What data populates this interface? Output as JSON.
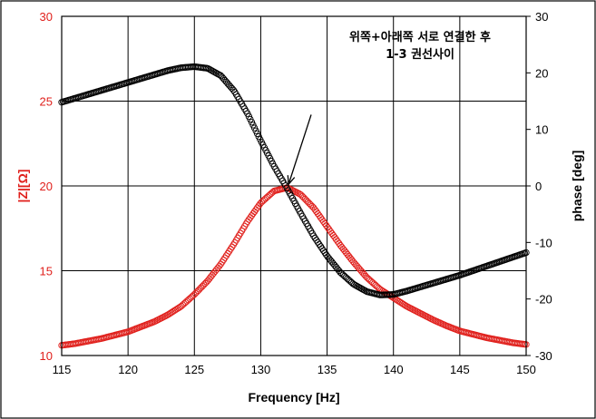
{
  "chart_data": {
    "type": "scatter",
    "title": "",
    "annotation_lines": [
      "위쪽+아래쪽 서로 연결한 후",
      "1-3 권선사이"
    ],
    "xlabel": "Frequency [Hz]",
    "ylabel_left": "|Z|[Ω]",
    "ylabel_right": "phase [deg]",
    "xlim": [
      115,
      150
    ],
    "ylim_left": [
      10,
      30
    ],
    "ylim_right": [
      -30,
      30
    ],
    "x_ticks": [
      "115",
      "120",
      "125",
      "130",
      "135",
      "140",
      "145",
      "150"
    ],
    "y_ticks_left": [
      "10",
      "15",
      "20",
      "25",
      "30"
    ],
    "y_ticks_right": [
      "-30",
      "-20",
      "-10",
      "0",
      "10",
      "20",
      "30"
    ],
    "grid": true,
    "marker": "open-circle",
    "colors": {
      "impedance": "#e0201c",
      "phase": "#000000",
      "frame": "#000000",
      "grid": "#000000"
    },
    "series": [
      {
        "axis": "left",
        "color": "#e0201c",
        "x": [
          115,
          116,
          117,
          118,
          119,
          120,
          121,
          122,
          123,
          124,
          125,
          126,
          127,
          128,
          129,
          130,
          131,
          132,
          133,
          134,
          135,
          136,
          137,
          138,
          139,
          140,
          141,
          142,
          143,
          144,
          145,
          146,
          147,
          148,
          149,
          150
        ],
        "values": [
          10.6,
          10.7,
          10.85,
          11.0,
          11.2,
          11.4,
          11.7,
          12.0,
          12.4,
          12.9,
          13.6,
          14.4,
          15.4,
          16.6,
          17.9,
          19.0,
          19.7,
          19.9,
          19.5,
          18.7,
          17.6,
          16.5,
          15.5,
          14.6,
          13.9,
          13.4,
          12.9,
          12.5,
          12.1,
          11.75,
          11.45,
          11.25,
          11.05,
          10.9,
          10.75,
          10.65
        ]
      },
      {
        "axis": "right",
        "color": "#000000",
        "x": [
          115,
          116,
          117,
          118,
          119,
          120,
          121,
          122,
          123,
          124,
          125,
          126,
          127,
          128,
          129,
          130,
          131,
          132,
          133,
          134,
          135,
          136,
          137,
          138,
          139,
          140,
          141,
          142,
          143,
          144,
          145,
          146,
          147,
          148,
          149,
          150
        ],
        "values": [
          14.8,
          15.5,
          16.2,
          16.9,
          17.6,
          18.3,
          19.0,
          19.7,
          20.4,
          20.9,
          21.1,
          20.8,
          19.5,
          16.8,
          12.8,
          8.0,
          3.5,
          -0.5,
          -4.8,
          -8.9,
          -12.4,
          -15.3,
          -17.4,
          -18.7,
          -19.3,
          -19.2,
          -18.6,
          -17.9,
          -17.2,
          -16.5,
          -15.8,
          -15.0,
          -14.2,
          -13.4,
          -12.6,
          -11.8
        ]
      }
    ],
    "arrow": {
      "from": [
        133.8,
        24.2
      ],
      "to": [
        132.1,
        20.1
      ],
      "axis": "left"
    }
  }
}
